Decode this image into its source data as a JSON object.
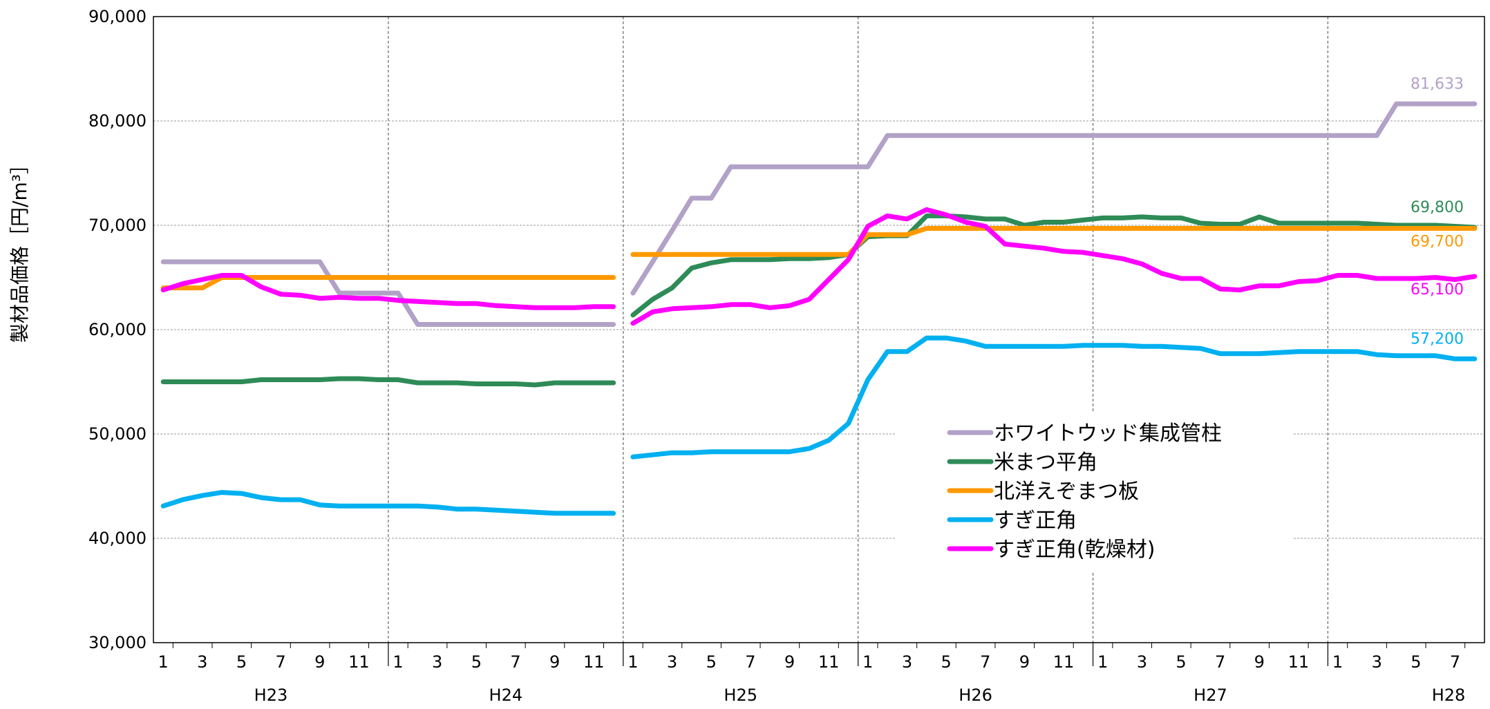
{
  "chart_data": {
    "type": "line",
    "title": "",
    "xlabel": "",
    "ylabel": "製材品価格［円/m³］",
    "ylim": [
      30000,
      90000
    ],
    "y_ticks": [
      "30,000",
      "40,000",
      "50,000",
      "60,000",
      "70,000",
      "80,000",
      "90,000"
    ],
    "x_month_tick_labels": [
      "1",
      "3",
      "5",
      "7",
      "9",
      "11"
    ],
    "x_month_tick_labels_last_year": [
      "1",
      "3",
      "5",
      "7"
    ],
    "years": [
      "H23",
      "H24",
      "H25",
      "H26",
      "H27",
      "H28"
    ],
    "months_per_year": [
      12,
      12,
      12,
      12,
      12,
      8
    ],
    "gap_between": [
      "H24",
      "H25"
    ],
    "grid": true,
    "legend_position": "center-right",
    "series": [
      {
        "name": "ホワイトウッド集成管柱",
        "color": "#b2a2c7",
        "end_label": "81,633",
        "values": [
          66500,
          66500,
          66500,
          66500,
          66500,
          66500,
          66500,
          66500,
          66500,
          63500,
          63500,
          63500,
          63500,
          60500,
          60500,
          60500,
          60500,
          60500,
          60500,
          60500,
          60500,
          60500,
          60500,
          60500,
          63500,
          66500,
          69500,
          72600,
          72600,
          75600,
          75600,
          75600,
          75600,
          75600,
          75600,
          75600,
          75600,
          78600,
          78600,
          78600,
          78600,
          78600,
          78600,
          78600,
          78600,
          78600,
          78600,
          78600,
          78600,
          78600,
          78600,
          78600,
          78600,
          78600,
          78600,
          78600,
          78600,
          78600,
          78600,
          78600,
          78600,
          78600,
          78600,
          81633,
          81633,
          81633,
          81633,
          81633
        ]
      },
      {
        "name": "米まつ平角",
        "color": "#2e8b57",
        "end_label": "69,800",
        "values": [
          55000,
          55000,
          55000,
          55000,
          55000,
          55200,
          55200,
          55200,
          55200,
          55300,
          55300,
          55200,
          55200,
          54900,
          54900,
          54900,
          54800,
          54800,
          54800,
          54700,
          54900,
          54900,
          54900,
          54900,
          61400,
          62900,
          64000,
          65900,
          66400,
          66700,
          66700,
          66700,
          66800,
          66800,
          66900,
          67200,
          68900,
          69000,
          69000,
          70900,
          70900,
          70800,
          70600,
          70600,
          70000,
          70300,
          70300,
          70500,
          70700,
          70700,
          70800,
          70700,
          70700,
          70200,
          70100,
          70100,
          70800,
          70200,
          70200,
          70200,
          70200,
          70200,
          70100,
          70000,
          70000,
          70000,
          69900,
          69800
        ]
      },
      {
        "name": "北洋えぞまつ板",
        "color": "#ff9900",
        "end_label": "69,700",
        "values": [
          64000,
          64000,
          64000,
          65000,
          65000,
          65000,
          65000,
          65000,
          65000,
          65000,
          65000,
          65000,
          65000,
          65000,
          65000,
          65000,
          65000,
          65000,
          65000,
          65000,
          65000,
          65000,
          65000,
          65000,
          67200,
          67200,
          67200,
          67200,
          67200,
          67200,
          67200,
          67200,
          67200,
          67200,
          67200,
          67200,
          69100,
          69100,
          69100,
          69700,
          69700,
          69700,
          69700,
          69700,
          69700,
          69700,
          69700,
          69700,
          69700,
          69700,
          69700,
          69700,
          69700,
          69700,
          69700,
          69700,
          69700,
          69700,
          69700,
          69700,
          69700,
          69700,
          69700,
          69700,
          69700,
          69700,
          69700,
          69700
        ]
      },
      {
        "name": "すぎ正角",
        "color": "#00b0f0",
        "end_label": "57,200",
        "values": [
          43100,
          43700,
          44100,
          44400,
          44300,
          43900,
          43700,
          43700,
          43200,
          43100,
          43100,
          43100,
          43100,
          43100,
          43000,
          42800,
          42800,
          42700,
          42600,
          42500,
          42400,
          42400,
          42400,
          42400,
          47800,
          48000,
          48200,
          48200,
          48300,
          48300,
          48300,
          48300,
          48300,
          48600,
          49400,
          51000,
          55200,
          57900,
          57900,
          59200,
          59200,
          58900,
          58400,
          58400,
          58400,
          58400,
          58400,
          58500,
          58500,
          58500,
          58400,
          58400,
          58300,
          58200,
          57700,
          57700,
          57700,
          57800,
          57900,
          57900,
          57900,
          57900,
          57600,
          57500,
          57500,
          57500,
          57200,
          57200
        ]
      },
      {
        "name": "すぎ正角(乾燥材)",
        "color": "#ff00ff",
        "end_label": "65,100",
        "values": [
          63800,
          64400,
          64800,
          65200,
          65200,
          64100,
          63400,
          63300,
          63000,
          63100,
          63000,
          63000,
          62800,
          62700,
          62600,
          62500,
          62500,
          62300,
          62200,
          62100,
          62100,
          62100,
          62200,
          62200,
          60600,
          61700,
          62000,
          62100,
          62200,
          62400,
          62400,
          62100,
          62300,
          62900,
          64800,
          66700,
          69900,
          70900,
          70600,
          71500,
          71000,
          70300,
          69900,
          68200,
          68000,
          67800,
          67500,
          67400,
          67100,
          66800,
          66300,
          65400,
          64900,
          64900,
          63900,
          63800,
          64200,
          64200,
          64600,
          64700,
          65200,
          65200,
          64900,
          64900,
          64900,
          65000,
          64800,
          65100
        ]
      }
    ]
  }
}
